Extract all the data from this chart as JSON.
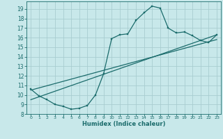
{
  "title": "",
  "xlabel": "Humidex (Indice chaleur)",
  "bg_color": "#c8e8ea",
  "grid_color": "#a8cdd0",
  "line_color": "#1a6b6b",
  "xlim": [
    -0.5,
    23.5
  ],
  "ylim": [
    8,
    19.8
  ],
  "xticks": [
    0,
    1,
    2,
    3,
    4,
    5,
    6,
    7,
    8,
    9,
    10,
    11,
    12,
    13,
    14,
    15,
    16,
    17,
    18,
    19,
    20,
    21,
    22,
    23
  ],
  "yticks": [
    8,
    9,
    10,
    11,
    12,
    13,
    14,
    15,
    16,
    17,
    18,
    19
  ],
  "line1_x": [
    0,
    1,
    2,
    3,
    4,
    5,
    6,
    7,
    8,
    9,
    10,
    11,
    12,
    13,
    14,
    15,
    16,
    17,
    18,
    19,
    20,
    21,
    22,
    23
  ],
  "line1_y": [
    10.6,
    9.9,
    9.5,
    9.0,
    8.8,
    8.5,
    8.6,
    8.9,
    10.0,
    12.2,
    15.9,
    16.3,
    16.4,
    17.8,
    18.6,
    19.3,
    19.1,
    17.0,
    16.5,
    16.6,
    16.2,
    15.7,
    15.5,
    16.3
  ],
  "line2_x": [
    0,
    23
  ],
  "line2_y": [
    9.5,
    16.3
  ],
  "line3_x": [
    0,
    23
  ],
  "line3_y": [
    10.5,
    15.8
  ]
}
